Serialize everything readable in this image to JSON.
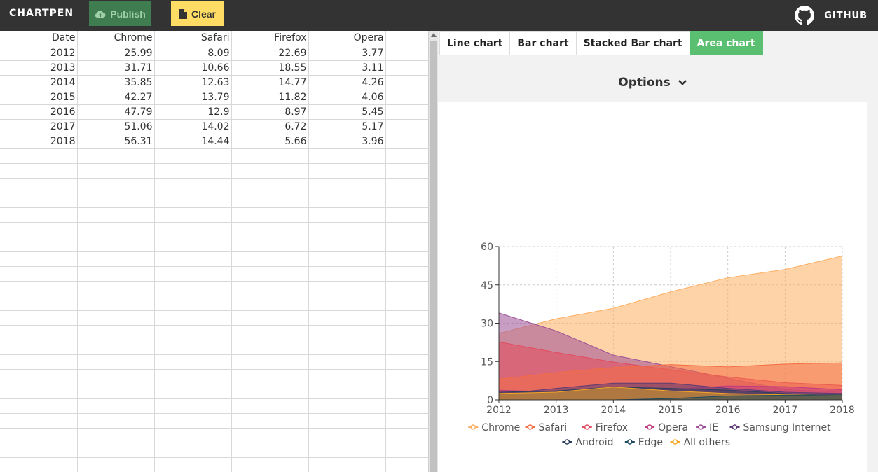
{
  "header": {
    "brand": "CHARTPEN",
    "publish_label": "Publish",
    "clear_label": "Clear",
    "github_label": "GITHUB"
  },
  "sheet": {
    "headers": [
      "Date",
      "Chrome",
      "Safari",
      "Firefox",
      "Opera"
    ],
    "rows": [
      [
        "2012",
        "25.99",
        "8.09",
        "22.69",
        "3.77"
      ],
      [
        "2013",
        "31.71",
        "10.66",
        "18.55",
        "3.11"
      ],
      [
        "2014",
        "35.85",
        "12.63",
        "14.77",
        "4.26"
      ],
      [
        "2015",
        "42.27",
        "13.79",
        "11.82",
        "4.06"
      ],
      [
        "2016",
        "47.79",
        "12.9",
        "8.97",
        "5.45"
      ],
      [
        "2017",
        "51.06",
        "14.02",
        "6.72",
        "5.17"
      ],
      [
        "2018",
        "56.31",
        "14.44",
        "5.66",
        "3.96"
      ]
    ]
  },
  "tabs": [
    {
      "label": "Line chart",
      "active": false
    },
    {
      "label": "Bar chart",
      "active": false
    },
    {
      "label": "Stacked Bar chart",
      "active": false
    },
    {
      "label": "Area chart",
      "active": true
    }
  ],
  "options_label": "Options",
  "chart_data": {
    "type": "area",
    "categories": [
      "2012",
      "2013",
      "2014",
      "2015",
      "2016",
      "2017",
      "2018"
    ],
    "ylim": [
      0,
      60
    ],
    "yticks": [
      0,
      15,
      30,
      45,
      60
    ],
    "grid": true,
    "legend_position": "bottom",
    "series": [
      {
        "name": "Chrome",
        "color": "#fdae61",
        "values": [
          25.99,
          31.71,
          35.85,
          42.27,
          47.79,
          51.06,
          56.31
        ]
      },
      {
        "name": "Safari",
        "color": "#f46d43",
        "values": [
          8.09,
          10.66,
          12.63,
          13.79,
          12.9,
          14.02,
          14.44
        ]
      },
      {
        "name": "Firefox",
        "color": "#e34a5d",
        "values": [
          22.69,
          18.55,
          14.77,
          11.82,
          8.97,
          6.72,
          5.66
        ]
      },
      {
        "name": "Opera",
        "color": "#c23b80",
        "values": [
          3.77,
          3.11,
          4.26,
          4.06,
          5.45,
          5.17,
          3.96
        ]
      },
      {
        "name": "IE",
        "color": "#9c4f96",
        "values": [
          34.0,
          27.0,
          17.5,
          13.0,
          8.5,
          4.0,
          3.0
        ]
      },
      {
        "name": "Samsung Internet",
        "color": "#5e3c74",
        "values": [
          2.2,
          4.5,
          6.5,
          6.5,
          4.5,
          3.0,
          2.5
        ]
      },
      {
        "name": "Android",
        "color": "#2c3e5c",
        "values": [
          3.0,
          3.5,
          5.0,
          4.5,
          3.8,
          2.5,
          1.5
        ]
      },
      {
        "name": "Edge",
        "color": "#1d4a5c",
        "values": [
          0,
          0,
          0,
          0.5,
          1.5,
          1.8,
          2.0
        ]
      },
      {
        "name": "All others",
        "color": "#f6a623",
        "values": [
          2.5,
          3.0,
          5.0,
          3.5,
          2.5,
          2.0,
          1.8
        ]
      }
    ]
  }
}
